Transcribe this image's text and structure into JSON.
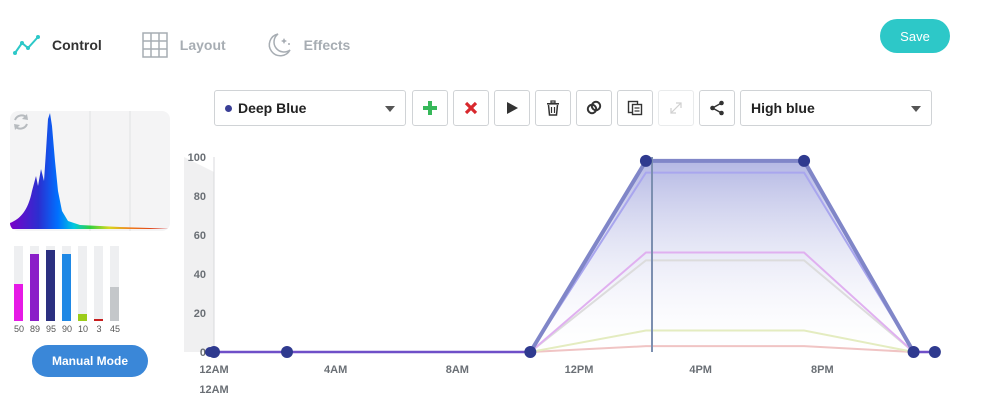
{
  "tabs": [
    {
      "label": "Control",
      "icon": "line-chart-icon",
      "active": true
    },
    {
      "label": "Layout",
      "icon": "grid-icon",
      "active": false
    },
    {
      "label": "Effects",
      "icon": "moon-stars-icon",
      "active": false
    }
  ],
  "save_label": "Save",
  "accent_color": "#2dc8c8",
  "left_panel": {
    "refresh_icon": "refresh-icon",
    "channels": [
      {
        "value": "50",
        "level": 0.5,
        "color": "#e619e6"
      },
      {
        "value": "89",
        "level": 0.89,
        "color": "#8a1ec8"
      },
      {
        "value": "95",
        "level": 0.95,
        "color": "#2b2f80"
      },
      {
        "value": "90",
        "level": 0.9,
        "color": "#1f88e5"
      },
      {
        "value": "10",
        "level": 0.1,
        "color": "#9ccc1a"
      },
      {
        "value": "3",
        "level": 0.03,
        "color": "#c81e1e"
      },
      {
        "value": "45",
        "level": 0.45,
        "color": "#c4c7ca"
      }
    ],
    "manual_mode_label": "Manual Mode",
    "manual_mode_color": "#3a87d8"
  },
  "toolbar": {
    "channel_select": "Deep Blue",
    "channel_color": "#3a3f96",
    "buttons": [
      "add-icon",
      "delete-icon",
      "play-icon",
      "trash-icon",
      "link-icon",
      "copy-icon",
      "expand-icon",
      "share-icon"
    ],
    "preset_select": "High blue"
  },
  "chart_data": {
    "type": "line",
    "title": "",
    "xlabel": "",
    "ylabel": "",
    "x_ticks": [
      "12AM",
      "4AM",
      "8AM",
      "12PM",
      "4PM",
      "8PM"
    ],
    "x_tick_hours": [
      0,
      4,
      8,
      12,
      16,
      20
    ],
    "extra_label": "12AM",
    "y_ticks": [
      0,
      20,
      40,
      60,
      80,
      100
    ],
    "ylim": [
      0,
      100
    ],
    "xlim_hours": [
      0,
      24
    ],
    "current_time_hours": 14.4,
    "selected_series": "Deep Blue",
    "control_points": [
      {
        "x": 0.0,
        "y": 0
      },
      {
        "x": 2.4,
        "y": 0
      },
      {
        "x": 10.4,
        "y": 0
      },
      {
        "x": 14.2,
        "y": 98
      },
      {
        "x": 19.4,
        "y": 98
      },
      {
        "x": 23.0,
        "y": 0
      },
      {
        "x": 23.7,
        "y": 0
      }
    ],
    "series": [
      {
        "color": "#8086c8",
        "points": [
          [
            10.4,
            0
          ],
          [
            14.2,
            98
          ],
          [
            19.4,
            98
          ],
          [
            23.0,
            0
          ]
        ]
      },
      {
        "color": "#a9a6ee",
        "points": [
          [
            10.4,
            0
          ],
          [
            14.2,
            92
          ],
          [
            19.4,
            92
          ],
          [
            23.0,
            0
          ]
        ]
      },
      {
        "color": "#e0b0f0",
        "points": [
          [
            10.4,
            0
          ],
          [
            14.2,
            51
          ],
          [
            19.4,
            51
          ],
          [
            23.0,
            0
          ]
        ]
      },
      {
        "color": "#dcdcdc",
        "points": [
          [
            10.4,
            0
          ],
          [
            14.2,
            47
          ],
          [
            19.4,
            47
          ],
          [
            23.0,
            0
          ]
        ]
      },
      {
        "color": "#e4ecc0",
        "points": [
          [
            10.4,
            0
          ],
          [
            14.2,
            11
          ],
          [
            19.4,
            11
          ],
          [
            23.0,
            0
          ]
        ]
      },
      {
        "color": "#f0c4c4",
        "points": [
          [
            10.4,
            0
          ],
          [
            14.2,
            3
          ],
          [
            19.4,
            3
          ],
          [
            23.0,
            0
          ]
        ]
      }
    ]
  }
}
